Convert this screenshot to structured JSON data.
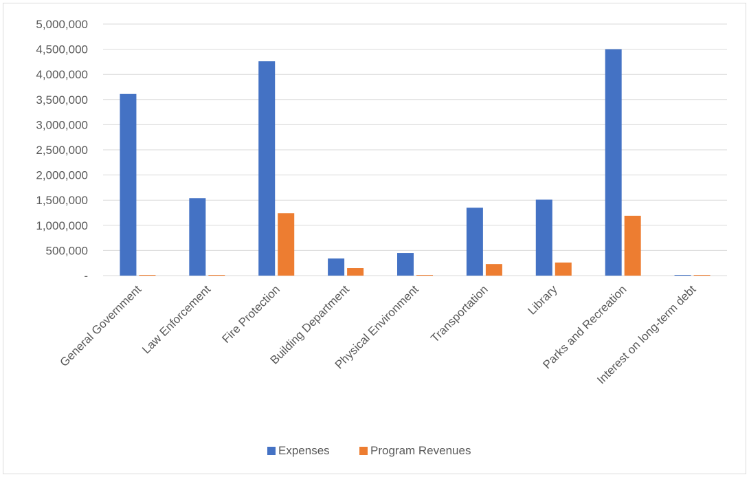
{
  "chart_data": {
    "type": "bar",
    "categories": [
      "General Government",
      "Law Enforcement",
      "Fire Protection",
      "Building Department",
      "Physical Environment",
      "Transportation",
      "Library",
      "Parks and Recreation",
      "Interest on long-term debt"
    ],
    "series": [
      {
        "name": "Expenses",
        "color": "#4472c4",
        "values": [
          3610000,
          1540000,
          4260000,
          340000,
          450000,
          1350000,
          1510000,
          4500000,
          10000
        ]
      },
      {
        "name": "Program Revenues",
        "color": "#ed7d31",
        "values": [
          10000,
          10000,
          1240000,
          150000,
          0,
          230000,
          260000,
          1190000,
          0
        ]
      }
    ],
    "ylim": [
      0,
      5000000
    ],
    "yticks": [
      0,
      500000,
      1000000,
      1500000,
      2000000,
      2500000,
      3000000,
      3500000,
      4000000,
      4500000,
      5000000
    ],
    "ytick_labels": [
      "-",
      "500,000",
      "1,000,000",
      "1,500,000",
      "2,000,000",
      "2,500,000",
      "3,000,000",
      "3,500,000",
      "4,000,000",
      "4,500,000",
      "5,000,000"
    ],
    "title": "",
    "xlabel": "",
    "ylabel": "",
    "grid": true,
    "legend_position": "bottom"
  }
}
